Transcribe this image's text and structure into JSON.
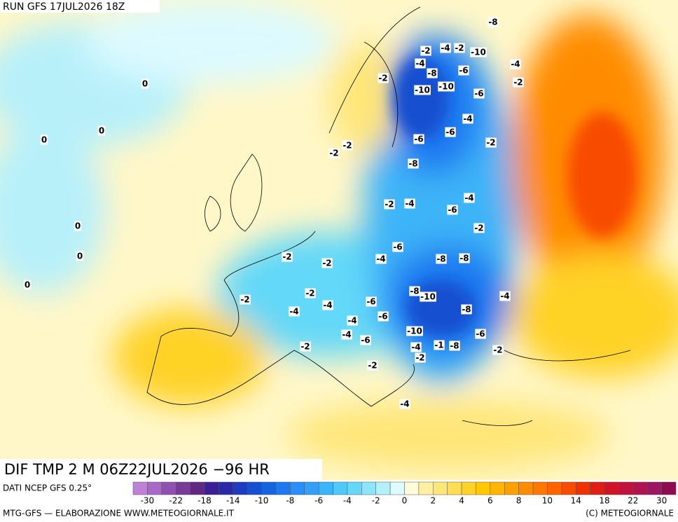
{
  "header": {
    "run": "RUN GFS 17JUL2026 18Z"
  },
  "title": "DIF TMP 2 M 06Z22JUL2026 −96 HR",
  "source": "DATI NCEP GFS 0.25°",
  "credit_left": "MTG-GFS — ELABORAZIONE WWW.METEOGIORNALE.IT",
  "credit_right": "(C) METEOGIORNALE",
  "colorbar": {
    "ticks": [
      -30,
      -22,
      -18,
      -14,
      -10,
      -8,
      -6,
      -4,
      -2,
      0,
      2,
      4,
      6,
      8,
      10,
      14,
      18,
      22,
      30
    ],
    "colors": [
      "#c080d8",
      "#a868c8",
      "#9050b0",
      "#783c98",
      "#602880",
      "#3c1e96",
      "#2828a8",
      "#1e3cc0",
      "#1450d0",
      "#1464e0",
      "#1e78f0",
      "#2890f8",
      "#32a0f8",
      "#3cb4f8",
      "#50c8f8",
      "#64d8f8",
      "#8ce6fa",
      "#b4f0fa",
      "#dcfaff",
      "#fffadc",
      "#fff0a0",
      "#ffe678",
      "#ffdc50",
      "#ffd228",
      "#ffc800",
      "#ffb400",
      "#ffa000",
      "#ff8c00",
      "#ff7800",
      "#ff6400",
      "#f84c00",
      "#f03200",
      "#e01e14",
      "#d01428",
      "#c0143c",
      "#b01450",
      "#a01464",
      "#900a50"
    ]
  },
  "map": {
    "contour_labels": [
      0,
      0,
      0,
      0,
      0,
      0,
      -8,
      -2,
      -4,
      -2,
      -10,
      -4,
      -4,
      -8,
      -6,
      -2,
      -2,
      -10,
      -10,
      -6,
      -4,
      -6,
      -6,
      -2,
      -2,
      -2,
      -8,
      -4,
      -2,
      -4,
      -6,
      -2,
      -6,
      -2,
      -2,
      -4,
      -8,
      -8,
      -8,
      -10,
      -4,
      -2,
      -2,
      -4,
      -4,
      -6,
      -8,
      -6,
      -4,
      -4,
      -6,
      -10,
      -6,
      -2,
      -4,
      -1,
      -8,
      -2,
      -2,
      -2,
      -4
    ]
  }
}
